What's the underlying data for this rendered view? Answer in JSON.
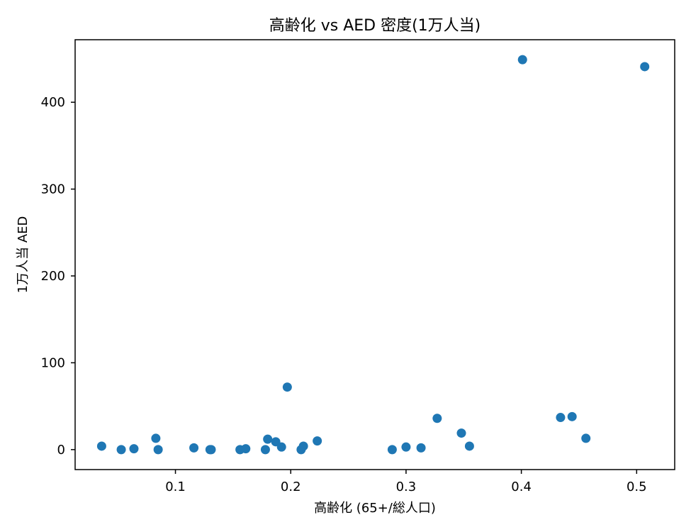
{
  "chart_data": {
    "type": "scatter",
    "title": "高齢化 vs AED 密度(1万人当)",
    "xlabel": "高齢化 (65+/総人口)",
    "ylabel": "1万人当 AED",
    "xlim": [
      0.013,
      0.533
    ],
    "ylim": [
      -23,
      472
    ],
    "x_ticks": [
      0.1,
      0.2,
      0.3,
      0.4,
      0.5
    ],
    "x_tick_labels": [
      "0.1",
      "0.2",
      "0.3",
      "0.4",
      "0.5"
    ],
    "y_ticks": [
      0,
      100,
      200,
      300,
      400
    ],
    "y_tick_labels": [
      "0",
      "100",
      "200",
      "300",
      "400"
    ],
    "grid": false,
    "legend": "none",
    "colors": {
      "point": "#1f77b4",
      "axes": "#000000",
      "background": "#ffffff"
    },
    "series": [
      {
        "points": [
          {
            "x": 0.036,
            "y": 4
          },
          {
            "x": 0.053,
            "y": 0
          },
          {
            "x": 0.064,
            "y": 1
          },
          {
            "x": 0.083,
            "y": 13
          },
          {
            "x": 0.085,
            "y": 0
          },
          {
            "x": 0.116,
            "y": 2
          },
          {
            "x": 0.13,
            "y": 0
          },
          {
            "x": 0.131,
            "y": 0
          },
          {
            "x": 0.156,
            "y": 0
          },
          {
            "x": 0.161,
            "y": 1
          },
          {
            "x": 0.178,
            "y": 0
          },
          {
            "x": 0.18,
            "y": 12
          },
          {
            "x": 0.187,
            "y": 9
          },
          {
            "x": 0.192,
            "y": 3
          },
          {
            "x": 0.197,
            "y": 72
          },
          {
            "x": 0.209,
            "y": 0
          },
          {
            "x": 0.211,
            "y": 4
          },
          {
            "x": 0.223,
            "y": 10
          },
          {
            "x": 0.288,
            "y": 0
          },
          {
            "x": 0.3,
            "y": 3
          },
          {
            "x": 0.313,
            "y": 2
          },
          {
            "x": 0.327,
            "y": 36
          },
          {
            "x": 0.348,
            "y": 19
          },
          {
            "x": 0.355,
            "y": 4
          },
          {
            "x": 0.401,
            "y": 449
          },
          {
            "x": 0.434,
            "y": 37
          },
          {
            "x": 0.444,
            "y": 38
          },
          {
            "x": 0.456,
            "y": 13
          },
          {
            "x": 0.507,
            "y": 441
          }
        ]
      }
    ]
  }
}
